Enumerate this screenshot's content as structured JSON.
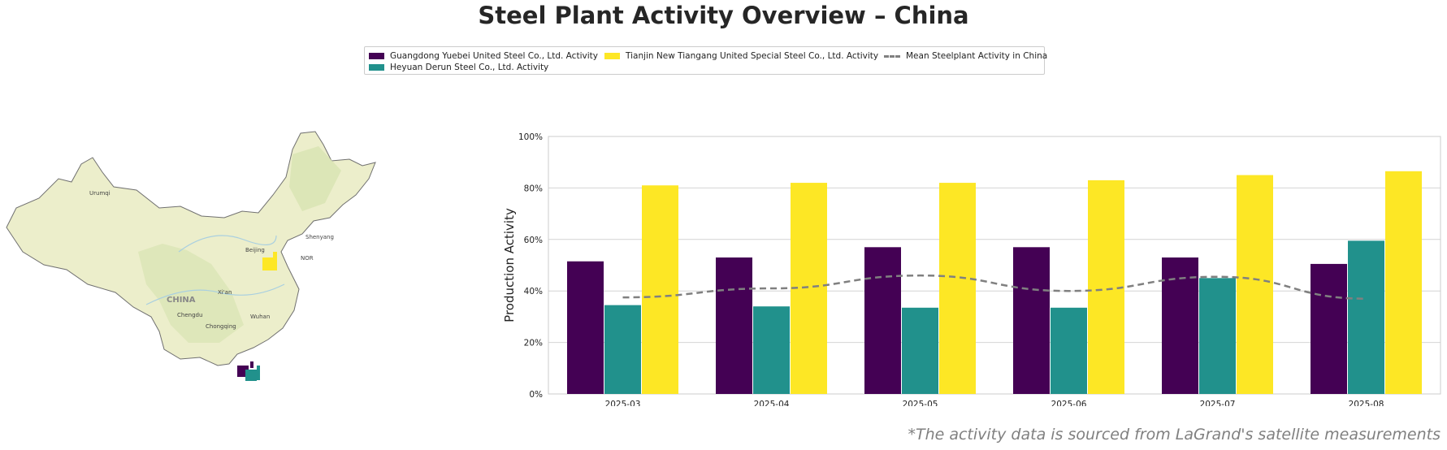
{
  "title": "Steel Plant Activity Overview – China",
  "footnote": "*The activity data is sourced from LaGrand's satellite measurements",
  "legend": {
    "items": [
      {
        "label": "Guangdong Yuebei United Steel Co., Ltd. Activity",
        "color": "#440154",
        "kind": "bar"
      },
      {
        "label": "Heyuan Derun Steel Co., Ltd. Activity",
        "color": "#21918c",
        "kind": "bar"
      },
      {
        "label": "Tianjin New Tiangang United Special Steel Co., Ltd. Activity",
        "color": "#fde725",
        "kind": "bar"
      },
      {
        "label": "Mean Steelplant Activity in China",
        "color": "#808080",
        "kind": "dashed-line"
      }
    ]
  },
  "map": {
    "country_label": "CHINA",
    "cities": [
      "Urumqi",
      "Beijing",
      "Shenyang",
      "Xi'an",
      "Chengdu",
      "Chongqing",
      "Wuhan"
    ],
    "region_label": "NOR",
    "land_color": "#eceecb",
    "border_color": "#707070"
  },
  "chart_data": {
    "type": "bar",
    "categories": [
      "2025-03",
      "2025-04",
      "2025-05",
      "2025-06",
      "2025-07",
      "2025-08"
    ],
    "series": [
      {
        "name": "Guangdong Yuebei United Steel Co., Ltd. Activity",
        "values": [
          51.5,
          53,
          57,
          57,
          53,
          50.5
        ],
        "color": "#440154"
      },
      {
        "name": "Heyuan Derun Steel Co., Ltd. Activity",
        "values": [
          34.5,
          34,
          33.5,
          33.5,
          45,
          59.5
        ],
        "color": "#21918c"
      },
      {
        "name": "Tianjin New Tiangang United Special Steel Co., Ltd. Activity",
        "values": [
          81,
          82,
          82,
          83,
          85,
          86.5
        ],
        "color": "#fde725"
      }
    ],
    "line": {
      "name": "Mean Steelplant Activity in China",
      "values": [
        37.5,
        41,
        46,
        40,
        45.5,
        37
      ],
      "color": "#808080",
      "style": "dashed"
    },
    "ylabel": "Production Activity",
    "xlabel": "",
    "ylim": [
      0,
      100
    ],
    "yticks": [
      "0%",
      "20%",
      "40%",
      "60%",
      "80%",
      "100%"
    ],
    "grid": true
  }
}
